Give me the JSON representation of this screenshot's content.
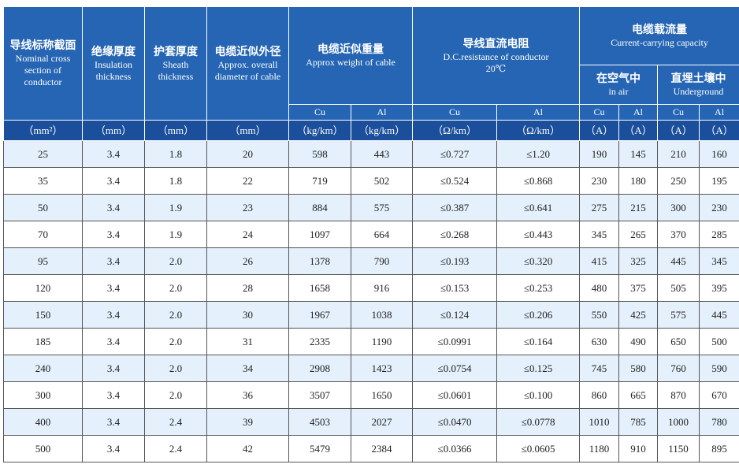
{
  "header": {
    "columns": [
      {
        "zh": "导线标称截面",
        "en": "Nominal cross section of conductor"
      },
      {
        "zh": "绝缘厚度",
        "en": "Insulation thickness"
      },
      {
        "zh": "护套厚度",
        "en": "Sheath thickness"
      },
      {
        "zh": "电缆近似外径",
        "en": "Approx. overall diameter of cable"
      }
    ],
    "weight": {
      "zh": "电缆近似重量",
      "en": "Approx weight of cable"
    },
    "resistance": {
      "zh": "导线直流电阻",
      "en": "D.C.resistance of conductor",
      "temp": "20℃"
    },
    "capacity": {
      "zh": "电缆载流量",
      "en": "Current-carrying capacity"
    },
    "in_air": {
      "zh": "在空气中",
      "en": "in air"
    },
    "underground": {
      "zh": "直埋土壤中",
      "en": "Underground"
    },
    "materials": [
      "Cu",
      "Al",
      "Cu",
      "Al",
      "Cu",
      "Al",
      "Cu",
      "Al"
    ]
  },
  "units": [
    "（mm²）",
    "（mm）",
    "（mm）",
    "（mm）",
    "（kg/km）",
    "（kg/km）",
    "（Ω/km）",
    "（Ω/km）",
    "（A）",
    "（A）",
    "（A）",
    "（A）"
  ],
  "rows": [
    [
      "25",
      "3.4",
      "1.8",
      "20",
      "598",
      "443",
      "≤0.727",
      "≤1.20",
      "190",
      "145",
      "210",
      "160"
    ],
    [
      "35",
      "3.4",
      "1.8",
      "22",
      "719",
      "502",
      "≤0.524",
      "≤0.868",
      "230",
      "180",
      "250",
      "195"
    ],
    [
      "50",
      "3.4",
      "1.9",
      "23",
      "884",
      "575",
      "≤0.387",
      "≤0.641",
      "275",
      "215",
      "300",
      "230"
    ],
    [
      "70",
      "3.4",
      "1.9",
      "24",
      "1097",
      "664",
      "≤0.268",
      "≤0.443",
      "345",
      "265",
      "370",
      "285"
    ],
    [
      "95",
      "3.4",
      "2.0",
      "26",
      "1378",
      "790",
      "≤0.193",
      "≤0.320",
      "415",
      "325",
      "445",
      "345"
    ],
    [
      "120",
      "3.4",
      "2.0",
      "28",
      "1658",
      "916",
      "≤0.153",
      "≤0.253",
      "480",
      "375",
      "505",
      "395"
    ],
    [
      "150",
      "3.4",
      "2.0",
      "30",
      "1967",
      "1038",
      "≤0.124",
      "≤0.206",
      "550",
      "425",
      "575",
      "445"
    ],
    [
      "185",
      "3.4",
      "2.0",
      "31",
      "2335",
      "1190",
      "≤0.0991",
      "≤0.164",
      "630",
      "490",
      "650",
      "500"
    ],
    [
      "240",
      "3.4",
      "2.0",
      "34",
      "2908",
      "1423",
      "≤0.0754",
      "≤0.125",
      "745",
      "580",
      "760",
      "590"
    ],
    [
      "300",
      "3.4",
      "2.0",
      "36",
      "3507",
      "1650",
      "≤0.0601",
      "≤0.100",
      "860",
      "665",
      "870",
      "670"
    ],
    [
      "400",
      "3.4",
      "2.4",
      "39",
      "4503",
      "2027",
      "≤0.0470",
      "≤0.0778",
      "1010",
      "785",
      "1000",
      "780"
    ],
    [
      "500",
      "3.4",
      "2.4",
      "42",
      "5479",
      "2384",
      "≤0.0366",
      "≤0.0605",
      "1180",
      "910",
      "1150",
      "895"
    ]
  ]
}
